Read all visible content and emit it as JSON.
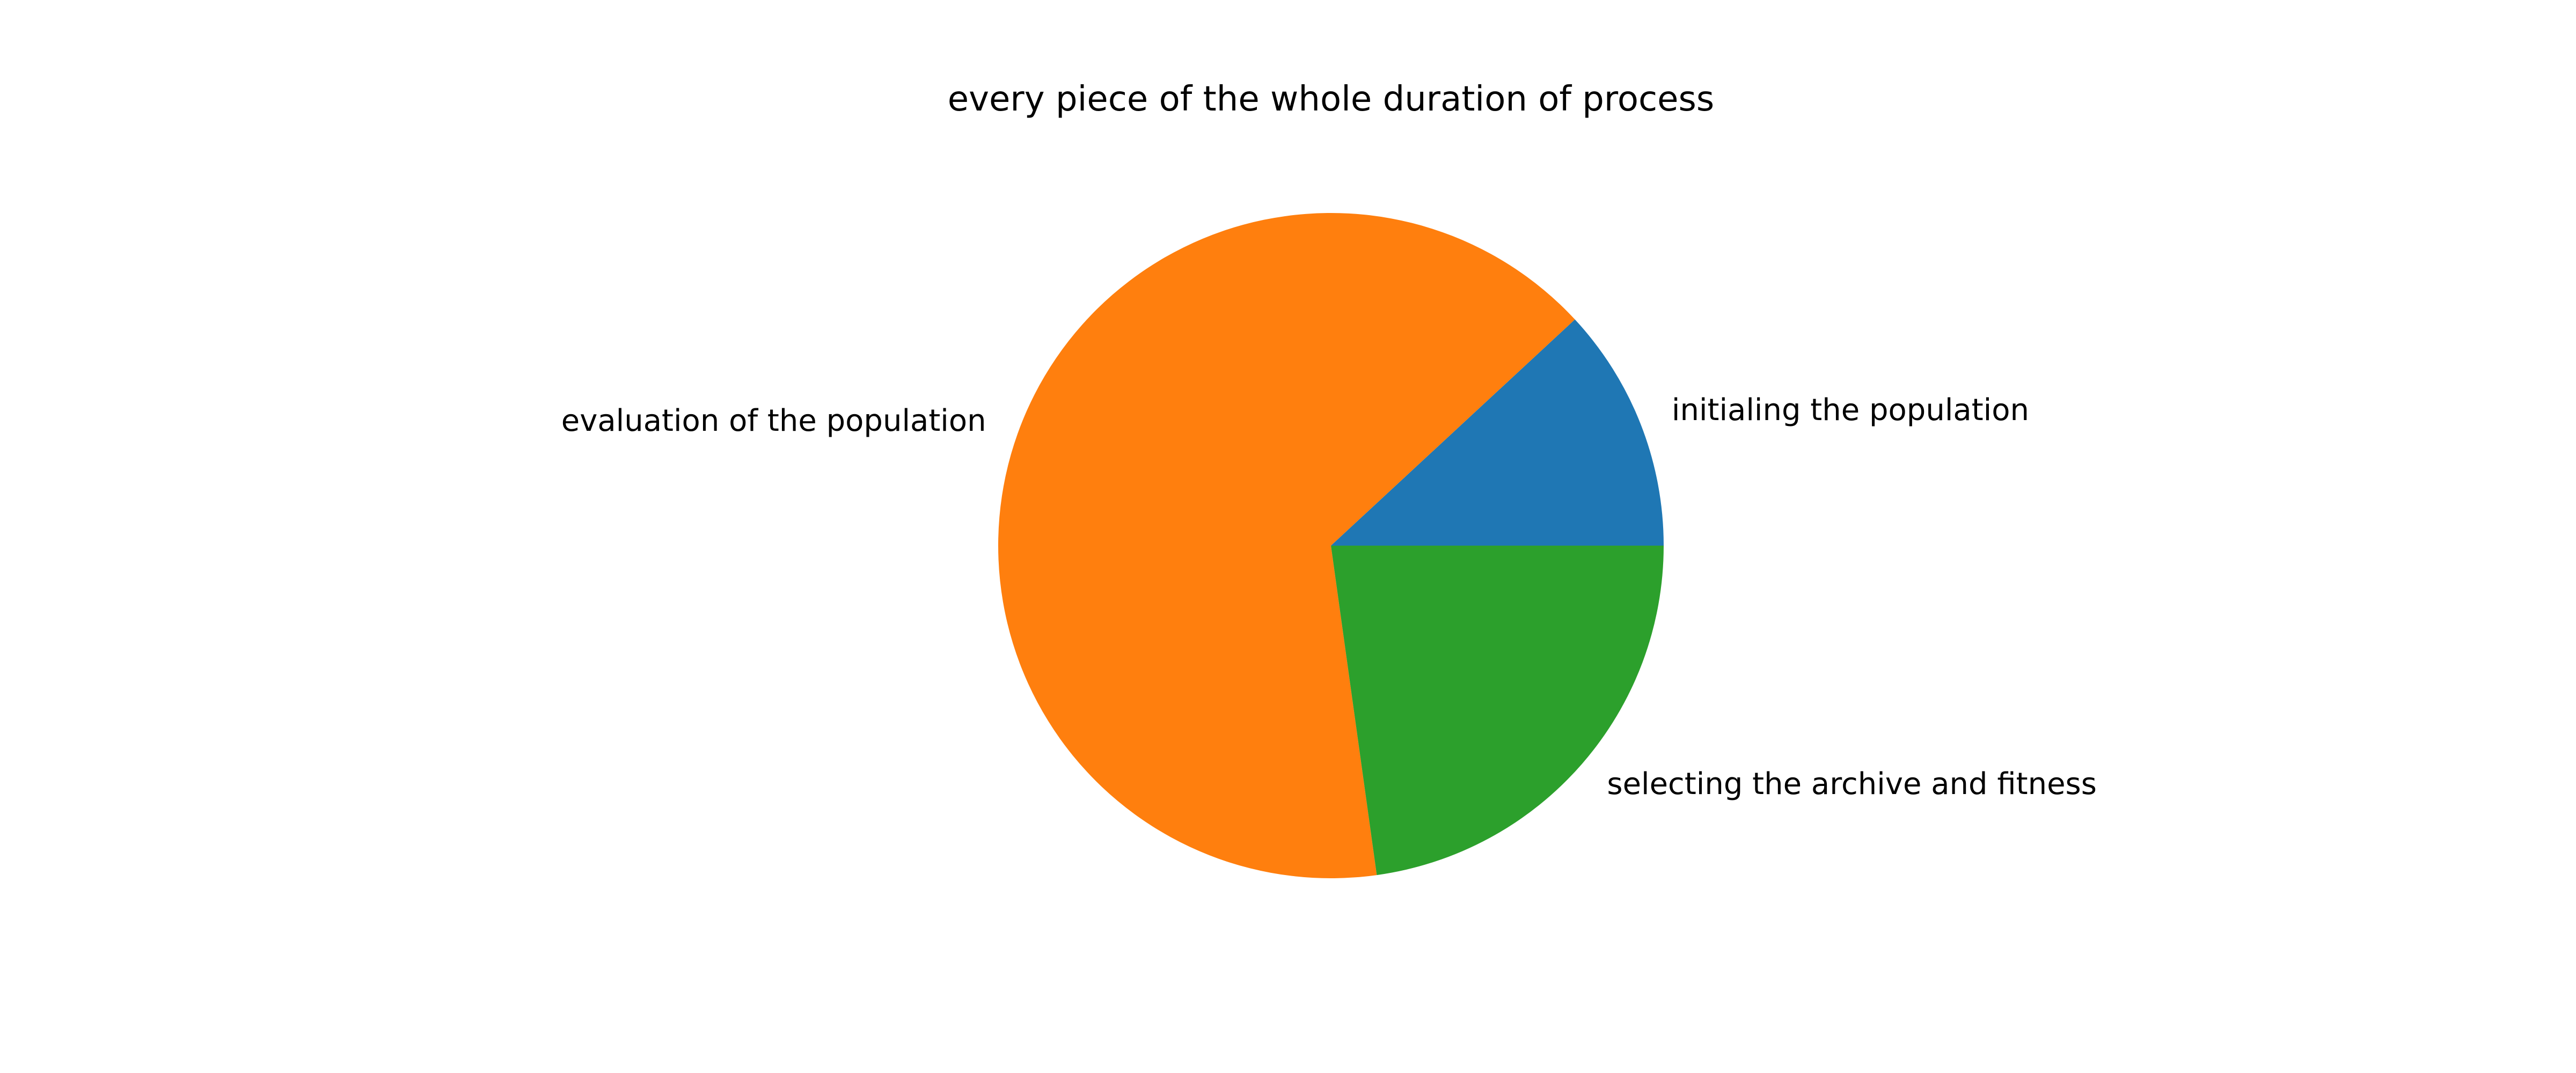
{
  "chart_data": {
    "type": "pie",
    "title": "every piece of the whole duration of process",
    "start_angle_deg": 0,
    "direction": "counterclockwise",
    "slices": [
      {
        "label": "initialing the population",
        "value": 11.9,
        "color": "#1f77b4"
      },
      {
        "label": "evaluation of the population",
        "value": 65.3,
        "color": "#ff7f0e"
      },
      {
        "label": "selecting the archive and fitness",
        "value": 22.8,
        "color": "#2ca02c"
      }
    ]
  }
}
